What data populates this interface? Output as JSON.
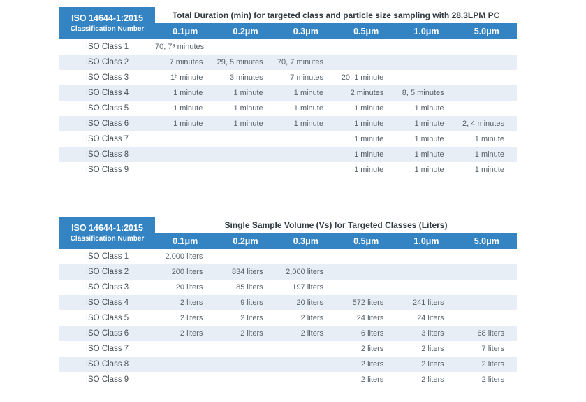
{
  "colors": {
    "accent_blue": "#3484C4",
    "row_stripe": "#E8EEF6"
  },
  "tables": [
    {
      "name": "total-duration-table",
      "corner_title": "ISO 14644-1:2015",
      "corner_subtitle": "Classification Number",
      "title": "Total Duration (min) for targeted class and particle size sampling with 28.3LPM PC",
      "columns": [
        "0.1μm",
        "0.2μm",
        "0.3μm",
        "0.5μm",
        "1.0μm",
        "5.0μm"
      ],
      "rows": [
        {
          "label": "ISO Class 1",
          "values": [
            "70, 7ᵃ minutes",
            "",
            "",
            "",
            "",
            ""
          ]
        },
        {
          "label": "ISO Class 2",
          "values": [
            "7 minutes",
            "29, 5 minutes",
            "70, 7 minutes",
            "",
            "",
            ""
          ]
        },
        {
          "label": "ISO Class 3",
          "values": [
            "1ᵇ minute",
            "3 minutes",
            "7 minutes",
            "20, 1 minute",
            "",
            ""
          ]
        },
        {
          "label": "ISO Class 4",
          "values": [
            "1 minute",
            "1 minute",
            "1 minute",
            "2 minutes",
            "8, 5 minutes",
            ""
          ]
        },
        {
          "label": "ISO Class 5",
          "values": [
            "1 minute",
            "1 minute",
            "1 minute",
            "1 minute",
            "1 minute",
            ""
          ]
        },
        {
          "label": "ISO Class 6",
          "values": [
            "1 minute",
            "1 minute",
            "1 minute",
            "1 minute",
            "1 minute",
            "2, 4 minutes"
          ]
        },
        {
          "label": "ISO Class 7",
          "values": [
            "",
            "",
            "",
            "1 minute",
            "1 minute",
            "1 minute"
          ]
        },
        {
          "label": "ISO Class 8",
          "values": [
            "",
            "",
            "",
            "1 minute",
            "1 minute",
            "1 minute"
          ]
        },
        {
          "label": "ISO Class 9",
          "values": [
            "",
            "",
            "",
            "1 minute",
            "1 minute",
            "1 minute"
          ]
        }
      ]
    },
    {
      "name": "single-sample-volume-table",
      "corner_title": "ISO 14644-1:2015",
      "corner_subtitle": "Classification Number",
      "title": "Single Sample Volume (Vs) for Targeted Classes (Liters)",
      "columns": [
        "0.1μm",
        "0.2μm",
        "0.3μm",
        "0.5μm",
        "1.0μm",
        "5.0μm"
      ],
      "rows": [
        {
          "label": "ISO Class 1",
          "values": [
            "2,000 liters",
            "",
            "",
            "",
            "",
            ""
          ]
        },
        {
          "label": "ISO Class 2",
          "values": [
            "200 liters",
            "834 liters",
            "2,000 liters",
            "",
            "",
            ""
          ]
        },
        {
          "label": "ISO Class 3",
          "values": [
            "20 liters",
            "85 liters",
            "197 liters",
            "",
            "",
            ""
          ]
        },
        {
          "label": "ISO Class 4",
          "values": [
            "2 liters",
            "9 liters",
            "20 liters",
            "572 liters",
            "241 liters",
            ""
          ]
        },
        {
          "label": "ISO Class 5",
          "values": [
            "2 liters",
            "2 liters",
            "2 liters",
            "24 liters",
            "24 liters",
            ""
          ]
        },
        {
          "label": "ISO Class 6",
          "values": [
            "2 liters",
            "2 liters",
            "2 liters",
            "6 liters",
            "3 liters",
            "68 liters"
          ]
        },
        {
          "label": "ISO Class 7",
          "values": [
            "",
            "",
            "",
            "2 liters",
            "2 liters",
            "7 liters"
          ]
        },
        {
          "label": "ISO Class 8",
          "values": [
            "",
            "",
            "",
            "2 liters",
            "2 liters",
            "2 liters"
          ]
        },
        {
          "label": "ISO Class 9",
          "values": [
            "",
            "",
            "",
            "2 liters",
            "2 liters",
            "2 liters"
          ]
        }
      ]
    }
  ]
}
